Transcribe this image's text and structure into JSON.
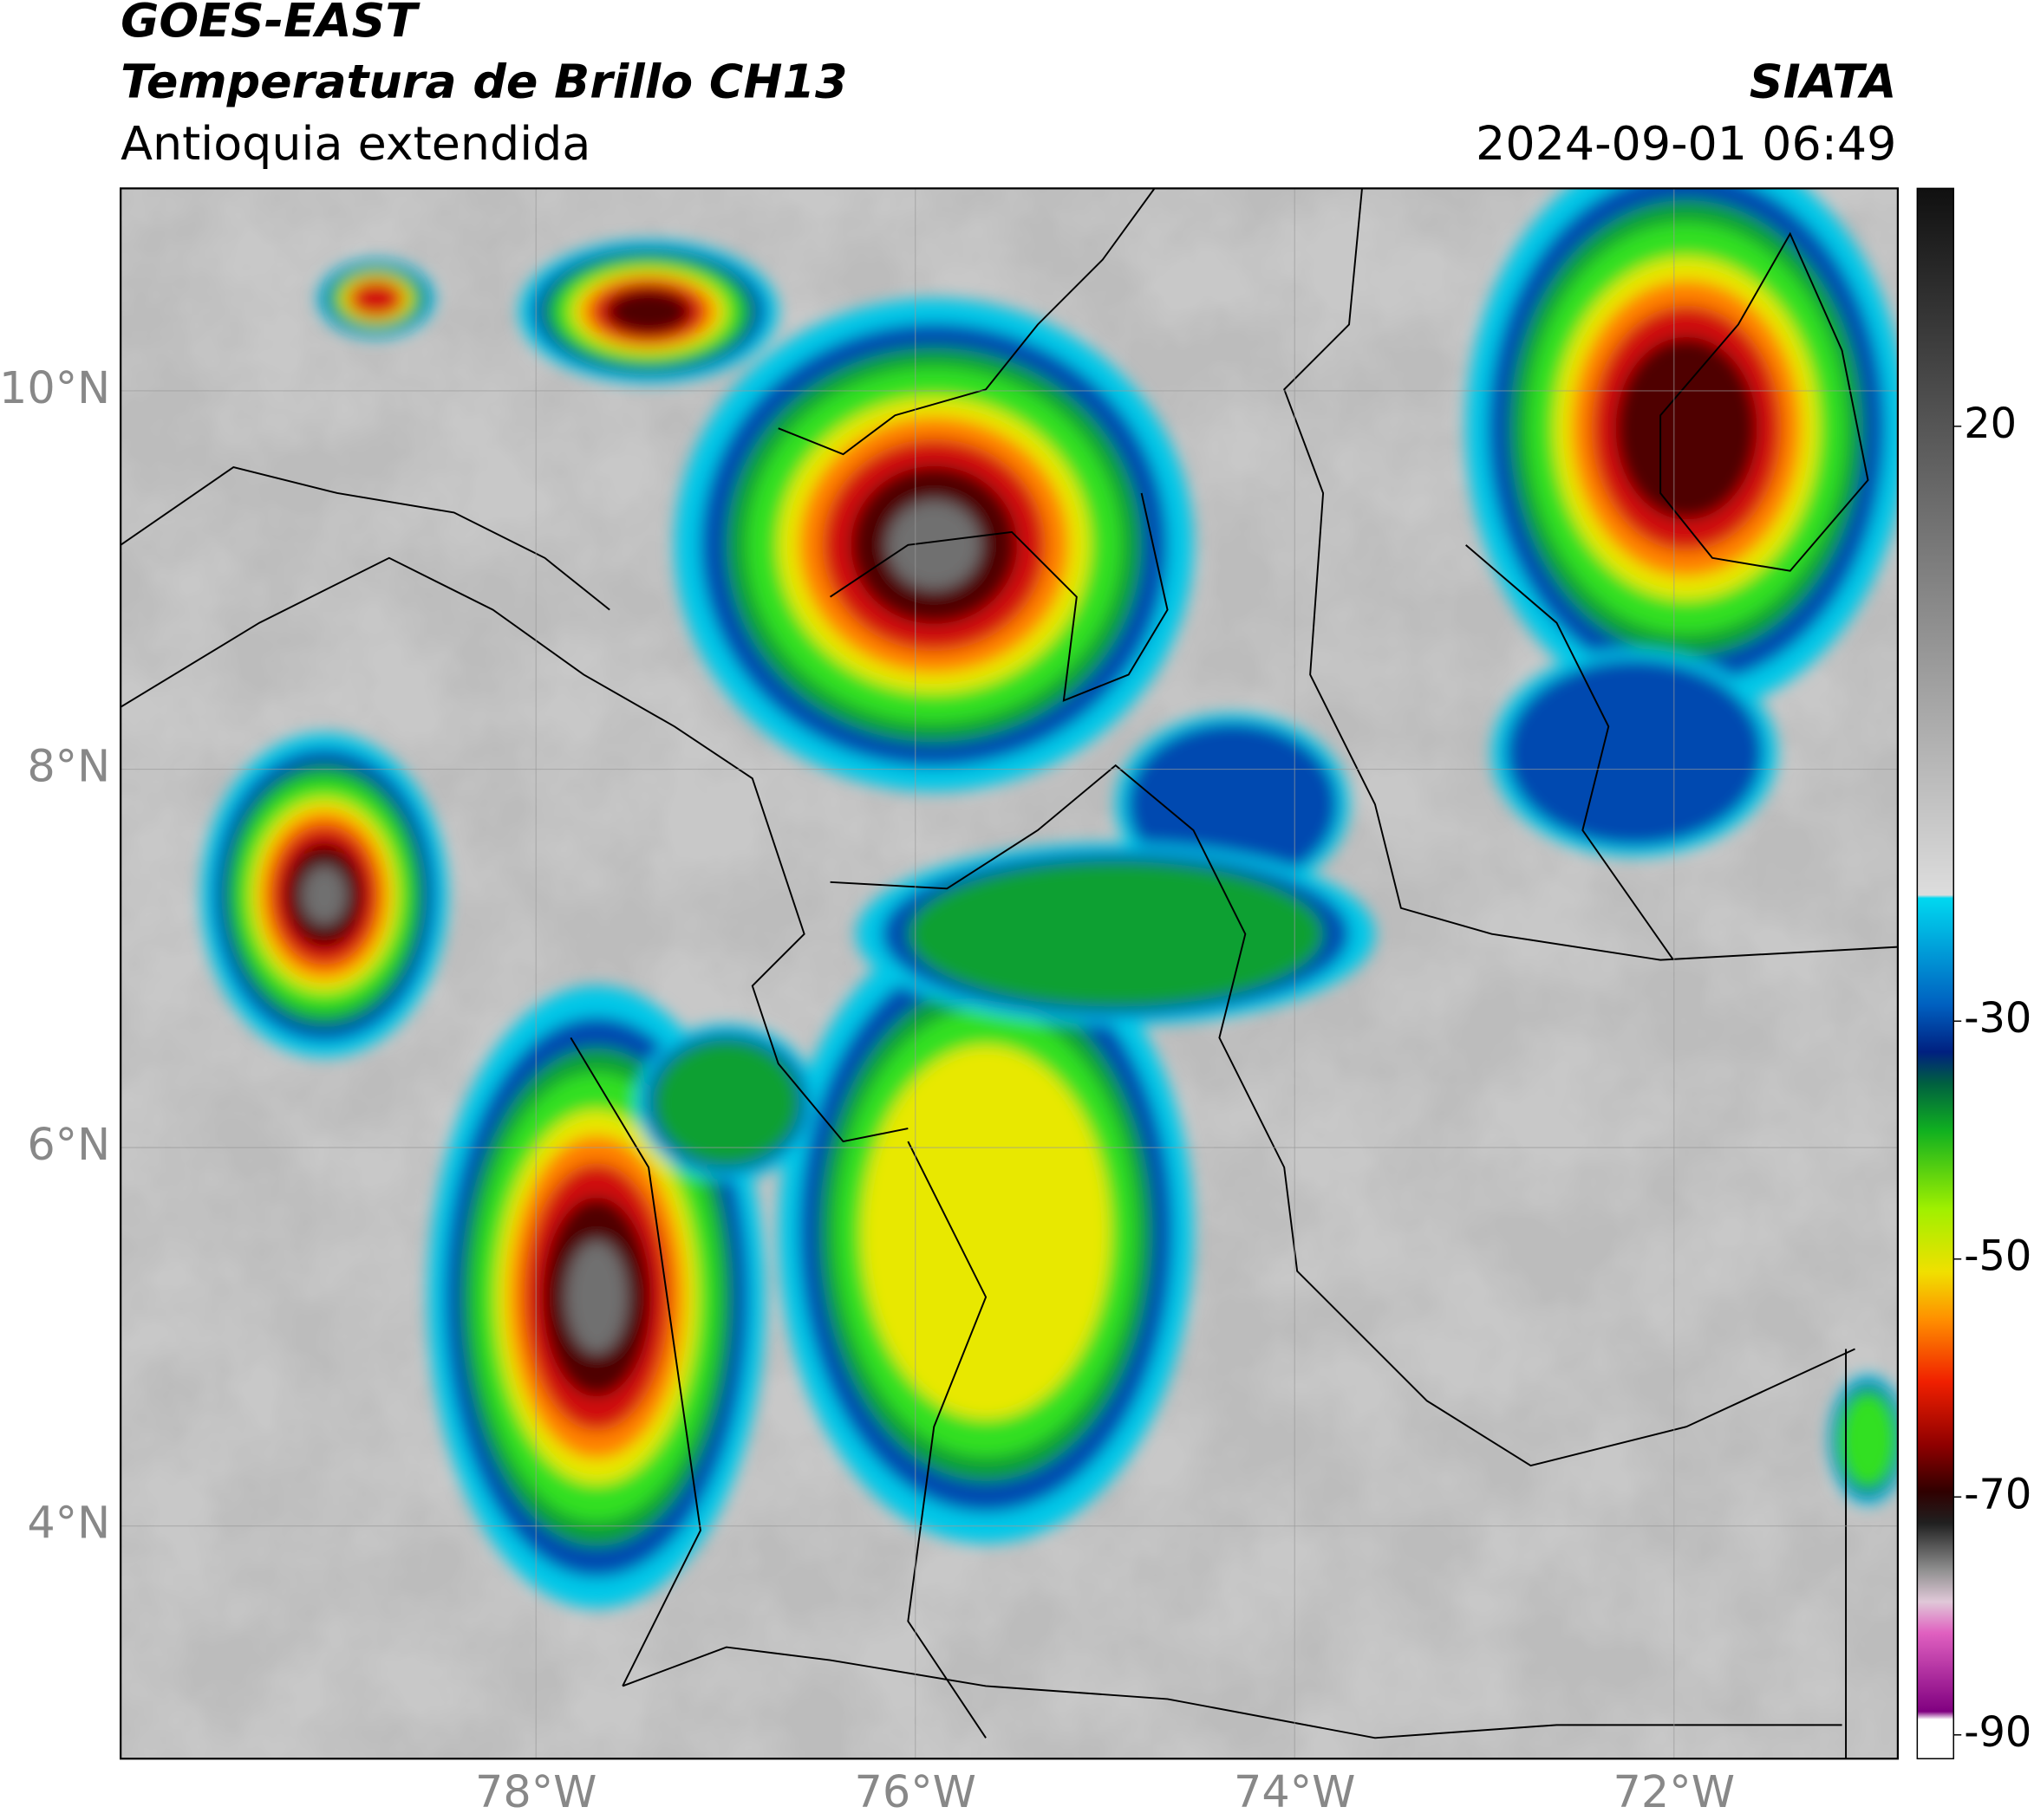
{
  "header": {
    "title": "GOES-EAST",
    "subtitle": "Temperatura de Brillo CH13",
    "region": "Antioquia extendida",
    "source": "SIATA",
    "datetime": "2024-09-01 06:49"
  },
  "chart_data": {
    "type": "map",
    "xlim": [
      -80.19,
      -70.82
    ],
    "ylim": [
      2.77,
      11.07
    ],
    "xticks": [
      {
        "value": -78,
        "label": "78°W"
      },
      {
        "value": -76,
        "label": "76°W"
      },
      {
        "value": -74,
        "label": "74°W"
      },
      {
        "value": -72,
        "label": "72°W"
      }
    ],
    "yticks": [
      {
        "value": 4,
        "label": "4°N"
      },
      {
        "value": 6,
        "label": "6°N"
      },
      {
        "value": 8,
        "label": "8°N"
      },
      {
        "value": 10,
        "label": "10°N"
      }
    ],
    "grid": true,
    "colorbar": {
      "lim": [
        -92,
        40
      ],
      "ticks": [
        20,
        -30,
        -50,
        -70,
        -90
      ]
    }
  }
}
